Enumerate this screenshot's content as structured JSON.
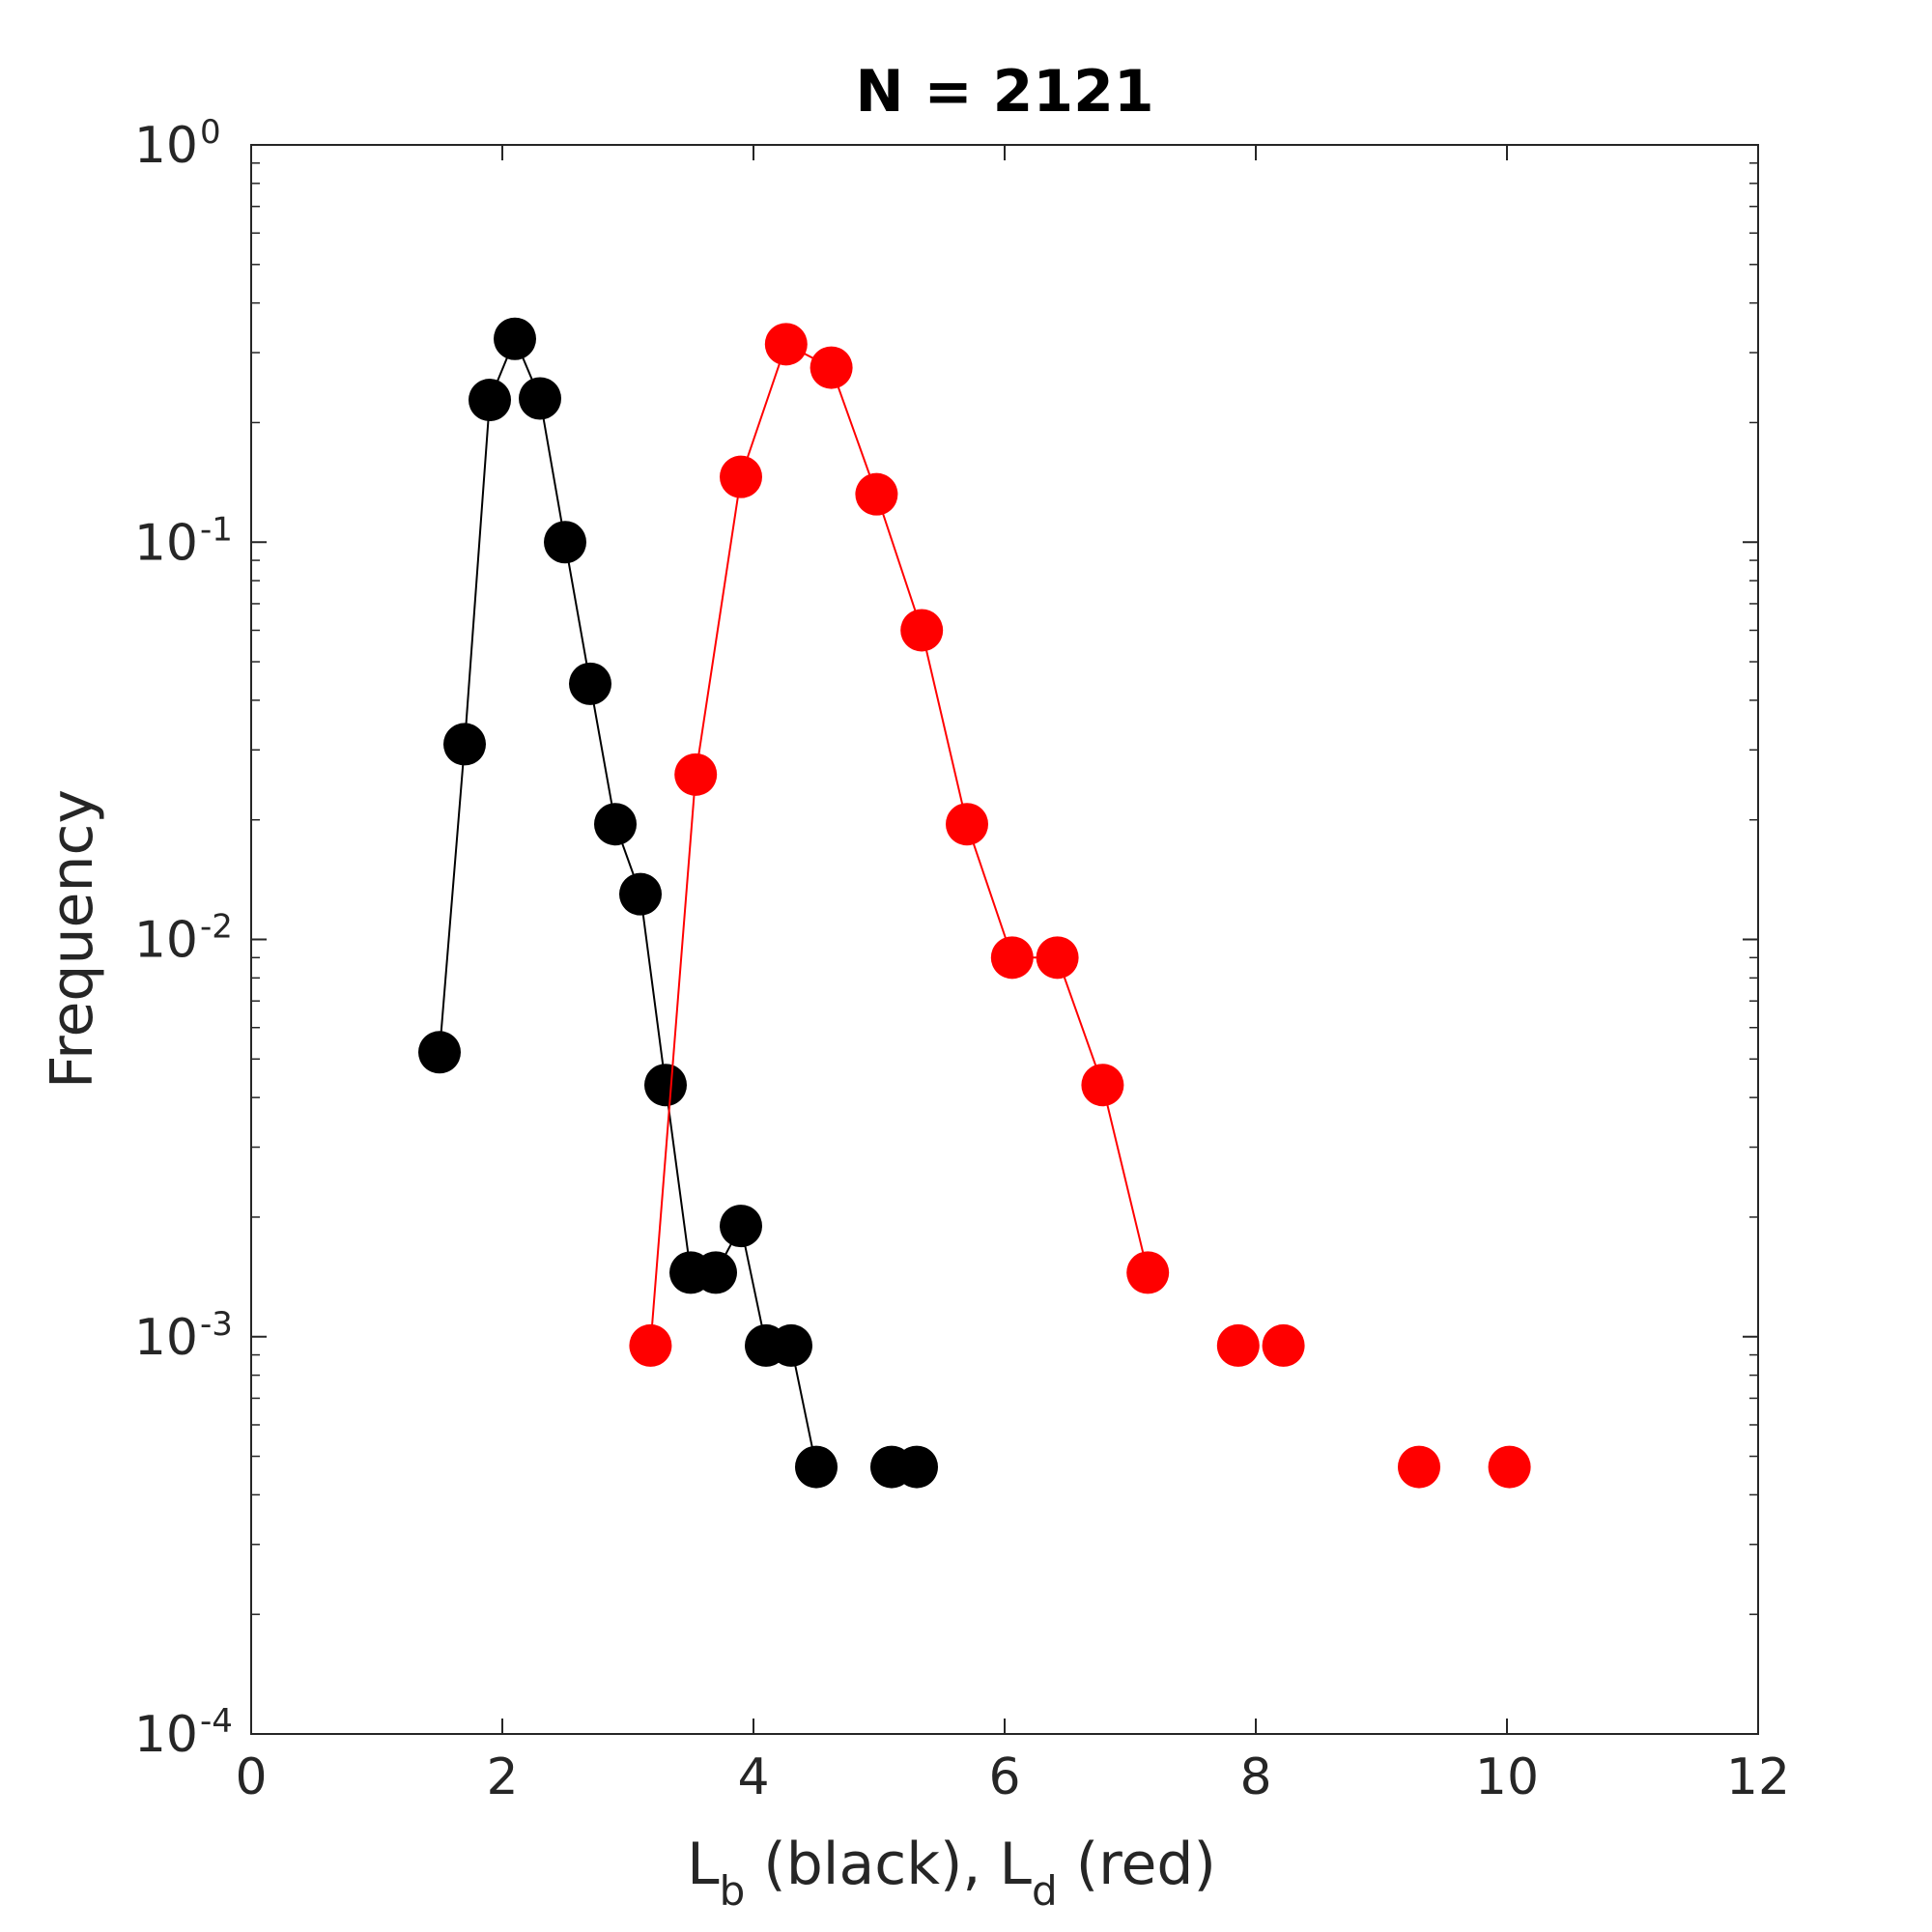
{
  "chart_data": {
    "type": "line",
    "title": "N = 2121",
    "ylabel": "Frequency",
    "xlabel": {
      "part1": "L",
      "sub1": "b",
      "part2": " (black), L",
      "sub2": "d",
      "part3": " (red)"
    },
    "xlim": [
      0,
      12
    ],
    "ylim": [
      0.0001,
      1
    ],
    "yscale": "log",
    "grid": false,
    "x_ticks": [
      "0",
      "2",
      "4",
      "6",
      "8",
      "10",
      "12"
    ],
    "y_ticks": [
      {
        "base": "10",
        "exp": "0",
        "value": 1
      },
      {
        "base": "10",
        "exp": "-1",
        "value": 0.1
      },
      {
        "base": "10",
        "exp": "-2",
        "value": 0.01
      },
      {
        "base": "10",
        "exp": "-3",
        "value": 0.001
      },
      {
        "base": "10",
        "exp": "-4",
        "value": 0.0001
      }
    ],
    "series": [
      {
        "color": "#000000",
        "points": [
          [
            1.5,
            0.0052
          ],
          [
            1.7,
            0.031
          ],
          [
            1.9,
            0.228
          ],
          [
            2.1,
            0.325
          ],
          [
            2.3,
            0.23
          ],
          [
            2.5,
            0.1
          ],
          [
            2.7,
            0.044
          ],
          [
            2.9,
            0.0195
          ],
          [
            3.1,
            0.013
          ],
          [
            3.3,
            0.0043
          ],
          [
            3.5,
            0.00145
          ],
          [
            3.7,
            0.00145
          ],
          [
            3.9,
            0.0019
          ],
          [
            4.1,
            0.00095
          ],
          [
            4.3,
            0.00095
          ],
          [
            4.5,
            0.00047
          ]
        ],
        "isolated_points": [
          [
            5.1,
            0.00047
          ],
          [
            5.3,
            0.00047
          ]
        ]
      },
      {
        "color": "#ff0000",
        "points": [
          [
            3.18,
            0.00095
          ],
          [
            3.54,
            0.026
          ],
          [
            3.9,
            0.146
          ],
          [
            4.26,
            0.315
          ],
          [
            4.62,
            0.275
          ],
          [
            4.98,
            0.132
          ],
          [
            5.34,
            0.06
          ],
          [
            5.7,
            0.0195
          ],
          [
            6.06,
            0.009
          ],
          [
            6.42,
            0.009
          ],
          [
            6.78,
            0.0043
          ],
          [
            7.14,
            0.00145
          ]
        ],
        "isolated_points": [
          [
            7.86,
            0.00095
          ],
          [
            8.22,
            0.00095
          ],
          [
            9.3,
            0.00047
          ],
          [
            10.02,
            0.00047
          ]
        ]
      }
    ]
  }
}
